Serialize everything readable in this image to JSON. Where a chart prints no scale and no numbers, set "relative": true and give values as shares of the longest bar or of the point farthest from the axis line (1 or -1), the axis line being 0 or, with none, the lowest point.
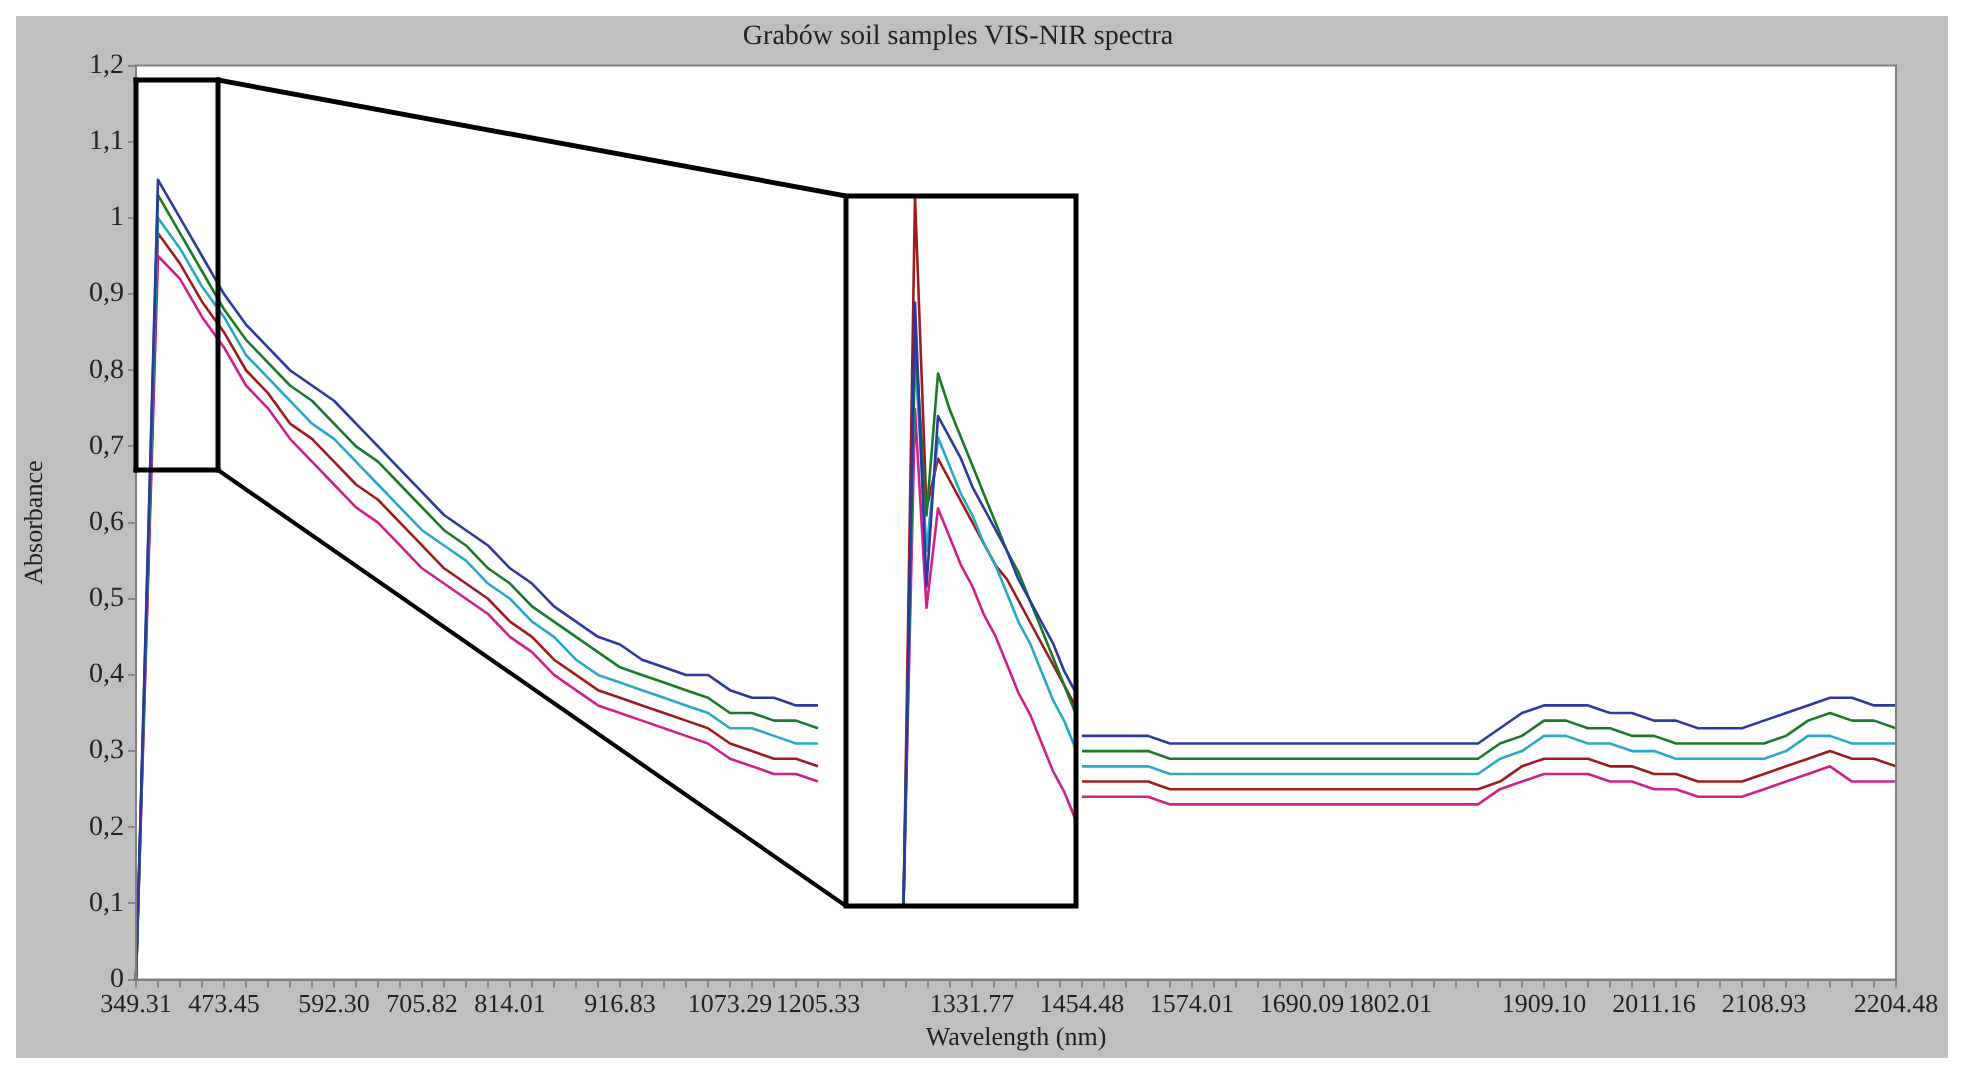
{
  "chart_data": [
    {
      "type": "line",
      "title": "Grabów soil samples VIS-NIR spectra",
      "xlabel": "Wavelength (nm)",
      "ylabel": "Absorbance",
      "categories": [
        "349.31",
        null,
        null,
        null,
        "473.45",
        null,
        null,
        null,
        null,
        "592.30",
        null,
        null,
        null,
        "705.82",
        null,
        null,
        null,
        "814.01",
        null,
        null,
        null,
        null,
        "916.83",
        null,
        null,
        null,
        null,
        "1073.29",
        null,
        null,
        null,
        "1205.33",
        null,
        null,
        null,
        null,
        null,
        null,
        "1331.77",
        null,
        null,
        null,
        null,
        "1454.48",
        null,
        null,
        null,
        null,
        "1574.01",
        null,
        null,
        null,
        null,
        "1690.09",
        null,
        null,
        null,
        "1802.01",
        null,
        null,
        null,
        null,
        null,
        null,
        "1909.10",
        null,
        null,
        null,
        null,
        "2011.16",
        null,
        null,
        null,
        null,
        "2108.93",
        null,
        null,
        null,
        null,
        null,
        "2204.48"
      ],
      "ylim": [
        0,
        1.2
      ],
      "yticks": [
        0,
        {
          "value": 0.1,
          "label": "0,1"
        },
        {
          "value": 0.2,
          "label": "0,2"
        },
        {
          "value": 0.3,
          "label": "0,3"
        },
        {
          "value": 0.4,
          "label": "0,4"
        },
        {
          "value": 0.5,
          "label": "0,5"
        },
        {
          "value": 0.6,
          "label": "0,6"
        },
        {
          "value": 0.7,
          "label": "0,7"
        },
        {
          "value": 0.8,
          "label": "0,8"
        },
        {
          "value": 0.9,
          "label": "0,9"
        },
        1,
        {
          "value": 1.1,
          "label": "1,1"
        },
        {
          "value": 1.2,
          "label": "1,2"
        }
      ],
      "grid": false,
      "legend": false,
      "marker": "none",
      "line_style": "solid",
      "series": [
        {
          "color": "#2b3aa0",
          "values": [
            0,
            1.05,
            1.0,
            0.95,
            0.9,
            0.86,
            0.83,
            0.8,
            0.78,
            0.76,
            0.73,
            0.7,
            0.67,
            0.64,
            0.61,
            0.59,
            0.57,
            0.54,
            0.52,
            0.49,
            0.47,
            0.45,
            0.44,
            0.42,
            0.41,
            0.4,
            0.4,
            0.38,
            0.37,
            0.37,
            0.36,
            0.36,
            null,
            null,
            null,
            null,
            null,
            null,
            null,
            null,
            null,
            null,
            null,
            0.32,
            0.32,
            0.32,
            0.32,
            0.31,
            0.31,
            0.31,
            0.31,
            0.31,
            0.31,
            0.31,
            0.31,
            0.31,
            0.31,
            0.31,
            0.31,
            0.31,
            0.31,
            0.31,
            0.33,
            0.35,
            0.36,
            0.36,
            0.36,
            0.35,
            0.35,
            0.34,
            0.34,
            0.33,
            0.33,
            0.33,
            0.34,
            0.35,
            0.36,
            0.37,
            0.37,
            0.36,
            0.36
          ]
        },
        {
          "color": "#1a7a2a",
          "values": [
            0,
            1.03,
            0.98,
            0.93,
            0.88,
            0.84,
            0.81,
            0.78,
            0.76,
            0.73,
            0.7,
            0.68,
            0.65,
            0.62,
            0.59,
            0.57,
            0.54,
            0.52,
            0.49,
            0.47,
            0.45,
            0.43,
            0.41,
            0.4,
            0.39,
            0.38,
            0.37,
            0.35,
            0.35,
            0.34,
            0.34,
            0.33,
            null,
            null,
            null,
            null,
            null,
            null,
            null,
            null,
            null,
            null,
            null,
            0.3,
            0.3,
            0.3,
            0.3,
            0.29,
            0.29,
            0.29,
            0.29,
            0.29,
            0.29,
            0.29,
            0.29,
            0.29,
            0.29,
            0.29,
            0.29,
            0.29,
            0.29,
            0.29,
            0.31,
            0.32,
            0.34,
            0.34,
            0.33,
            0.33,
            0.32,
            0.32,
            0.31,
            0.31,
            0.31,
            0.31,
            0.31,
            0.32,
            0.34,
            0.35,
            0.34,
            0.34,
            0.33
          ]
        },
        {
          "color": "#29a8c8",
          "values": [
            0,
            1.0,
            0.96,
            0.91,
            0.87,
            0.82,
            0.79,
            0.76,
            0.73,
            0.71,
            0.68,
            0.65,
            0.62,
            0.59,
            0.57,
            0.55,
            0.52,
            0.5,
            0.47,
            0.45,
            0.42,
            0.4,
            0.39,
            0.38,
            0.37,
            0.36,
            0.35,
            0.33,
            0.33,
            0.32,
            0.31,
            0.31,
            null,
            null,
            null,
            null,
            null,
            null,
            null,
            null,
            null,
            null,
            null,
            0.28,
            0.28,
            0.28,
            0.28,
            0.27,
            0.27,
            0.27,
            0.27,
            0.27,
            0.27,
            0.27,
            0.27,
            0.27,
            0.27,
            0.27,
            0.27,
            0.27,
            0.27,
            0.27,
            0.29,
            0.3,
            0.32,
            0.32,
            0.31,
            0.31,
            0.3,
            0.3,
            0.29,
            0.29,
            0.29,
            0.29,
            0.29,
            0.3,
            0.32,
            0.32,
            0.31,
            0.31,
            0.31
          ]
        },
        {
          "color": "#a01c1c",
          "values": [
            0,
            0.98,
            0.94,
            0.89,
            0.85,
            0.8,
            0.77,
            0.73,
            0.71,
            0.68,
            0.65,
            0.63,
            0.6,
            0.57,
            0.54,
            0.52,
            0.5,
            0.47,
            0.45,
            0.42,
            0.4,
            0.38,
            0.37,
            0.36,
            0.35,
            0.34,
            0.33,
            0.31,
            0.3,
            0.29,
            0.29,
            0.28,
            null,
            null,
            null,
            null,
            null,
            null,
            null,
            null,
            null,
            null,
            null,
            0.26,
            0.26,
            0.26,
            0.26,
            0.25,
            0.25,
            0.25,
            0.25,
            0.25,
            0.25,
            0.25,
            0.25,
            0.25,
            0.25,
            0.25,
            0.25,
            0.25,
            0.25,
            0.25,
            0.26,
            0.28,
            0.29,
            0.29,
            0.29,
            0.28,
            0.28,
            0.27,
            0.27,
            0.26,
            0.26,
            0.26,
            0.27,
            0.28,
            0.29,
            0.3,
            0.29,
            0.29,
            0.28
          ]
        },
        {
          "color": "#d0208a",
          "values": [
            0,
            0.95,
            0.92,
            0.87,
            0.83,
            0.78,
            0.75,
            0.71,
            0.68,
            0.65,
            0.62,
            0.6,
            0.57,
            0.54,
            0.52,
            0.5,
            0.48,
            0.45,
            0.43,
            0.4,
            0.38,
            0.36,
            0.35,
            0.34,
            0.33,
            0.32,
            0.31,
            0.29,
            0.28,
            0.27,
            0.27,
            0.26,
            null,
            null,
            null,
            null,
            null,
            null,
            null,
            null,
            null,
            null,
            null,
            0.24,
            0.24,
            0.24,
            0.24,
            0.23,
            0.23,
            0.23,
            0.23,
            0.23,
            0.23,
            0.23,
            0.23,
            0.23,
            0.23,
            0.23,
            0.23,
            0.23,
            0.23,
            0.23,
            0.25,
            0.26,
            0.27,
            0.27,
            0.27,
            0.26,
            0.26,
            0.25,
            0.25,
            0.24,
            0.24,
            0.24,
            0.25,
            0.26,
            0.27,
            0.28,
            0.26,
            0.26,
            0.26
          ]
        }
      ]
    },
    {
      "type": "line",
      "relative": true,
      "tick_labels": false,
      "grid": false,
      "legend": false,
      "marker": "none",
      "line_style": "solid",
      "categories": [
        null,
        null,
        null,
        null,
        null,
        null,
        null,
        null,
        null,
        null,
        null,
        null,
        null,
        null,
        null,
        null,
        null,
        null,
        null,
        null,
        null
      ],
      "series": [
        {
          "color": "#2b3aa0",
          "values": [
            null,
            null,
            null,
            null,
            null,
            0,
            0.85,
            0.45,
            0.69,
            0.66,
            0.63,
            0.59,
            0.56,
            0.53,
            0.5,
            0.46,
            0.43,
            0.4,
            0.37,
            0.33,
            0.3
          ]
        },
        {
          "color": "#1a7a2a",
          "values": [
            null,
            null,
            null,
            null,
            null,
            0,
            0.8,
            0.55,
            0.75,
            0.7,
            0.66,
            0.62,
            0.58,
            0.54,
            0.5,
            0.47,
            0.43,
            0.39,
            0.35,
            0.31,
            0.27
          ]
        },
        {
          "color": "#29a8c8",
          "values": [
            null,
            null,
            null,
            null,
            null,
            0,
            0.78,
            0.5,
            0.66,
            0.62,
            0.58,
            0.55,
            0.51,
            0.48,
            0.44,
            0.4,
            0.37,
            0.33,
            0.29,
            0.26,
            0.22
          ]
        },
        {
          "color": "#a01c1c",
          "values": [
            null,
            null,
            null,
            null,
            null,
            0,
            1.0,
            0.56,
            0.63,
            0.6,
            0.57,
            0.54,
            0.51,
            0.48,
            0.46,
            0.43,
            0.4,
            0.37,
            0.34,
            0.31,
            0.28
          ]
        },
        {
          "color": "#d0208a",
          "values": [
            null,
            null,
            null,
            null,
            null,
            0,
            0.7,
            0.42,
            0.56,
            0.52,
            0.48,
            0.45,
            0.41,
            0.38,
            0.34,
            0.3,
            0.27,
            0.23,
            0.19,
            0.16,
            0.12
          ]
        }
      ]
    }
  ]
}
